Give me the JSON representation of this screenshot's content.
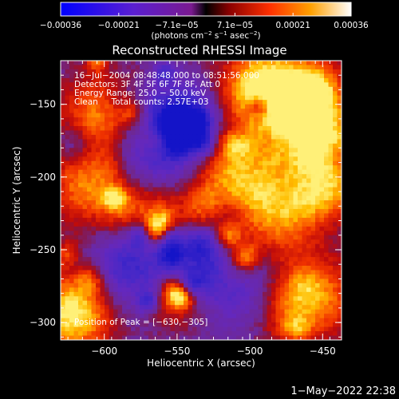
{
  "chart_data": {
    "type": "heatmap",
    "title": "Reconstructed RHESSI Image",
    "xlabel": "Heliocentric X (arcsec)",
    "ylabel": "Heliocentric Y (arcsec)",
    "xlim": [
      -630,
      -437
    ],
    "ylim": [
      -312,
      -120
    ],
    "x_ticks": [
      {
        "value": -600,
        "label": "−600"
      },
      {
        "value": -550,
        "label": "−550"
      },
      {
        "value": -500,
        "label": "−500"
      },
      {
        "value": -450,
        "label": "−450"
      }
    ],
    "y_ticks": [
      {
        "value": -150,
        "label": "−150"
      },
      {
        "value": -200,
        "label": "−200"
      },
      {
        "value": -250,
        "label": "−250"
      },
      {
        "value": -300,
        "label": "−300"
      }
    ],
    "colorbar": {
      "range": [
        -0.00036,
        0.00036
      ],
      "tick_labels": [
        "−0.00036",
        "−0.00021",
        "−7.1e−05",
        "7.1e−05",
        "0.00021",
        "0.00036"
      ],
      "unit_label_main": "(photons cm",
      "unit_sup1": "−2",
      "unit_mid1": " s",
      "unit_sup2": "−1",
      "unit_mid2": " asec",
      "unit_sup3": "−2",
      "unit_end": ")"
    },
    "annotations": {
      "line1": "16−Jul−2004 08:48:48.000 to 08:51:56.000",
      "line2": "Detectors: 3F 4F 5F 6F 7F 8F, Att 0",
      "line3": "Energy Range: 25.0 − 50.0 keV",
      "line4": "Clean     Total counts: 2.57E+03",
      "peak": "Position of Peak = [−630,−305]"
    },
    "peak_position": [
      -630,
      -305
    ],
    "timestamp": "1−May−2022 22:38"
  },
  "colors": {
    "background": "#000000",
    "foreground": "#ffffff"
  }
}
